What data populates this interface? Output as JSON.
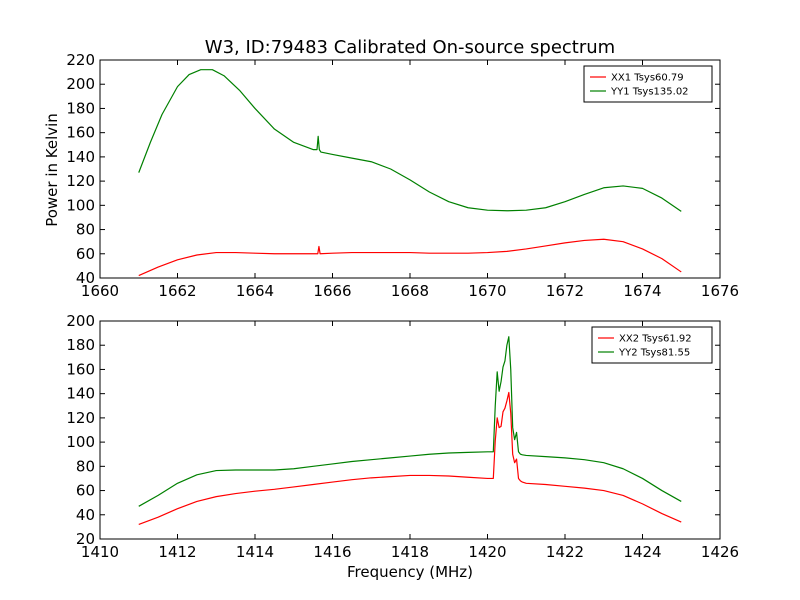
{
  "figure_title": "W3, ID:79483 Calibrated On-source spectrum",
  "ylabel": "Power in Kelvin",
  "xlabel": "Frequency (MHz)",
  "colors": {
    "red": "#ff0000",
    "green": "#008000"
  },
  "chart_data": [
    {
      "type": "line",
      "title": "W3, ID:79483 Calibrated On-source spectrum",
      "ylabel": "Power in Kelvin",
      "xlabel": "",
      "xlim": [
        1660,
        1676
      ],
      "ylim": [
        40,
        220
      ],
      "xticks": [
        1660,
        1662,
        1664,
        1666,
        1668,
        1670,
        1672,
        1674,
        1676
      ],
      "yticks": [
        40,
        60,
        80,
        100,
        120,
        140,
        160,
        180,
        200,
        220
      ],
      "legend_position": "top-right",
      "grid": false,
      "series": [
        {
          "name": "XX1 Tsys60.79",
          "color": "#ff0000",
          "x": [
            1661.0,
            1661.5,
            1662.0,
            1662.5,
            1663.0,
            1663.5,
            1664.0,
            1664.5,
            1665.0,
            1665.5,
            1665.62,
            1665.65,
            1665.68,
            1666.0,
            1666.5,
            1667.0,
            1667.5,
            1668.0,
            1668.5,
            1669.0,
            1669.5,
            1670.0,
            1670.5,
            1671.0,
            1671.5,
            1672.0,
            1672.5,
            1673.0,
            1673.5,
            1674.0,
            1674.5,
            1675.0
          ],
          "values": [
            42,
            49,
            55,
            59,
            61,
            61,
            60.5,
            60,
            60,
            60,
            60,
            66,
            60,
            60.5,
            61,
            61,
            61,
            61,
            60.5,
            60.5,
            60.5,
            61,
            62,
            64,
            66.5,
            69,
            71,
            72,
            70,
            64,
            56,
            45
          ]
        },
        {
          "name": "YY1 Tsys135.02",
          "color": "#008000",
          "x": [
            1661.0,
            1661.3,
            1661.6,
            1662.0,
            1662.3,
            1662.6,
            1662.9,
            1663.2,
            1663.6,
            1664.0,
            1664.5,
            1665.0,
            1665.5,
            1665.6,
            1665.63,
            1665.66,
            1665.7,
            1666.0,
            1666.5,
            1667.0,
            1667.5,
            1668.0,
            1668.5,
            1669.0,
            1669.5,
            1670.0,
            1670.5,
            1671.0,
            1671.5,
            1672.0,
            1672.5,
            1673.0,
            1673.5,
            1674.0,
            1674.5,
            1675.0
          ],
          "values": [
            127,
            152,
            175,
            198,
            208,
            212,
            212,
            207,
            195,
            180,
            163,
            152,
            146,
            146,
            157,
            146,
            144,
            142,
            139,
            136,
            130,
            121,
            111,
            103,
            98,
            96,
            95.5,
            96,
            98,
            103,
            109,
            114.5,
            116,
            114,
            106,
            95
          ]
        }
      ]
    },
    {
      "type": "line",
      "title": "",
      "ylabel": "",
      "xlabel": "Frequency (MHz)",
      "xlim": [
        1410,
        1426
      ],
      "ylim": [
        20,
        200
      ],
      "xticks": [
        1410,
        1412,
        1414,
        1416,
        1418,
        1420,
        1422,
        1424,
        1426
      ],
      "yticks": [
        20,
        40,
        60,
        80,
        100,
        120,
        140,
        160,
        180,
        200
      ],
      "legend_position": "top-right",
      "grid": false,
      "series": [
        {
          "name": "XX2 Tsys61.92",
          "color": "#ff0000",
          "x": [
            1411.0,
            1411.5,
            1412.0,
            1412.5,
            1413.0,
            1413.5,
            1414.0,
            1414.5,
            1415.0,
            1415.5,
            1416.0,
            1416.5,
            1417.0,
            1417.5,
            1418.0,
            1418.5,
            1419.0,
            1419.5,
            1420.0,
            1420.15,
            1420.2,
            1420.25,
            1420.3,
            1420.35,
            1420.4,
            1420.45,
            1420.5,
            1420.55,
            1420.6,
            1420.65,
            1420.7,
            1420.75,
            1420.8,
            1420.85,
            1420.9,
            1421.0,
            1421.5,
            1422.0,
            1422.5,
            1423.0,
            1423.5,
            1424.0,
            1424.5,
            1425.0
          ],
          "values": [
            32,
            38,
            45,
            51,
            55,
            57.5,
            59.5,
            61,
            63,
            65,
            67,
            69,
            70.5,
            71.5,
            72.5,
            72.5,
            72,
            71,
            70,
            70,
            101,
            120,
            112,
            113,
            125,
            128,
            134,
            141,
            124,
            90,
            83,
            86,
            70,
            68,
            67,
            66,
            65,
            63.5,
            62,
            60,
            56,
            49,
            41,
            34
          ]
        },
        {
          "name": "YY2 Tsys81.55",
          "color": "#008000",
          "x": [
            1411.0,
            1411.5,
            1412.0,
            1412.5,
            1413.0,
            1413.5,
            1414.0,
            1414.5,
            1415.0,
            1415.5,
            1416.0,
            1416.5,
            1417.0,
            1417.5,
            1418.0,
            1418.5,
            1419.0,
            1419.5,
            1420.0,
            1420.15,
            1420.2,
            1420.25,
            1420.3,
            1420.35,
            1420.4,
            1420.45,
            1420.5,
            1420.55,
            1420.6,
            1420.65,
            1420.7,
            1420.75,
            1420.8,
            1420.85,
            1420.9,
            1421.0,
            1421.5,
            1422.0,
            1422.5,
            1423.0,
            1423.5,
            1424.0,
            1424.5,
            1425.0
          ],
          "values": [
            47,
            56,
            66,
            73,
            76.5,
            77,
            77,
            77,
            78,
            80,
            82,
            84,
            85.5,
            87,
            88.5,
            90,
            91,
            91.5,
            92,
            92,
            130,
            158,
            142,
            150,
            162,
            167,
            180,
            187,
            160,
            112,
            102,
            108,
            92,
            90,
            89.5,
            89,
            88,
            87,
            85.5,
            83,
            78,
            70,
            60,
            51
          ]
        }
      ]
    }
  ]
}
